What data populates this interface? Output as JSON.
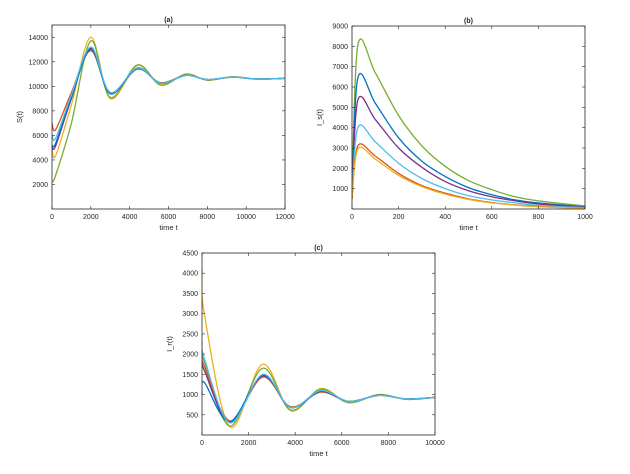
{
  "chart_data": [
    {
      "type": "line",
      "title": "(a)",
      "xlabel": "time t",
      "ylabel": "S(t)",
      "xlim": [
        0,
        12000
      ],
      "ylim": [
        0,
        15000
      ],
      "xticks": [
        0,
        2000,
        4000,
        6000,
        8000,
        10000,
        12000
      ],
      "yticks": [
        2000,
        4000,
        6000,
        8000,
        10000,
        12000,
        14000
      ],
      "x": [
        0,
        200,
        1000,
        2000,
        3000,
        4400,
        5600,
        6900,
        8000,
        9300,
        10500,
        12000
      ],
      "series": [
        {
          "name": "orange",
          "color": "#D95319",
          "values": [
            7000,
            6500,
            9500,
            12900,
            9500,
            11400,
            10300,
            10900,
            10550,
            10750,
            10600,
            10650
          ]
        },
        {
          "name": "yellow",
          "color": "#EDB120",
          "values": [
            4800,
            4400,
            8500,
            14000,
            9000,
            11700,
            10150,
            11000,
            10500,
            10780,
            10600,
            10650
          ]
        },
        {
          "name": "green",
          "color": "#77AC30",
          "values": [
            2200,
            2800,
            7000,
            13700,
            9100,
            11750,
            10100,
            11000,
            10500,
            10780,
            10600,
            10650
          ]
        },
        {
          "name": "purple",
          "color": "#7E2F8E",
          "values": [
            5000,
            5200,
            9000,
            13100,
            9400,
            11500,
            10250,
            10900,
            10550,
            10750,
            10600,
            10650
          ]
        },
        {
          "name": "blue",
          "color": "#0072BD",
          "values": [
            5200,
            5400,
            9100,
            13000,
            9400,
            11450,
            10250,
            10900,
            10550,
            10750,
            10600,
            10650
          ]
        },
        {
          "name": "light-blue",
          "color": "#4DBEEE",
          "values": [
            6000,
            5800,
            9300,
            13200,
            9500,
            11500,
            10250,
            10900,
            10550,
            10750,
            10600,
            10650
          ]
        }
      ]
    },
    {
      "type": "line",
      "title": "(b)",
      "xlabel": "time t",
      "ylabel": "I_s(t)",
      "xlim": [
        0,
        1000
      ],
      "ylim": [
        0,
        9000
      ],
      "xticks": [
        0,
        200,
        400,
        600,
        800,
        1000
      ],
      "yticks": [
        1000,
        2000,
        3000,
        4000,
        5000,
        6000,
        7000,
        8000,
        9000
      ],
      "x": [
        0,
        25,
        100,
        200,
        300,
        400,
        500,
        600,
        700,
        800,
        1000
      ],
      "series": [
        {
          "name": "green",
          "color": "#77AC30",
          "values": [
            500,
            8050,
            6700,
            4600,
            3100,
            2100,
            1400,
            950,
            600,
            400,
            150
          ]
        },
        {
          "name": "blue",
          "color": "#0072BD",
          "values": [
            500,
            6450,
            5200,
            3500,
            2350,
            1600,
            1050,
            700,
            450,
            300,
            100
          ]
        },
        {
          "name": "purple",
          "color": "#7E2F8E",
          "values": [
            500,
            5350,
            4400,
            3000,
            2050,
            1350,
            900,
            600,
            400,
            250,
            80
          ]
        },
        {
          "name": "light-blue",
          "color": "#4DBEEE",
          "values": [
            500,
            4000,
            3300,
            2250,
            1500,
            1000,
            650,
            450,
            300,
            180,
            60
          ]
        },
        {
          "name": "orange",
          "color": "#D95319",
          "values": [
            500,
            3100,
            2600,
            1750,
            1150,
            780,
            500,
            320,
            200,
            120,
            40
          ]
        },
        {
          "name": "yellow",
          "color": "#EDB120",
          "values": [
            500,
            2950,
            2450,
            1650,
            1100,
            730,
            470,
            300,
            190,
            110,
            30
          ]
        }
      ]
    },
    {
      "type": "line",
      "title": "(c)",
      "xlabel": "time t",
      "ylabel": "I_r(t)",
      "xlim": [
        0,
        10000
      ],
      "ylim": [
        0,
        4500
      ],
      "xticks": [
        0,
        2000,
        4000,
        6000,
        8000,
        10000
      ],
      "yticks": [
        500,
        1000,
        1500,
        2000,
        2500,
        3000,
        3500,
        4000,
        4500
      ],
      "x": [
        0,
        100,
        1200,
        2600,
        3800,
        5100,
        6300,
        7600,
        8800,
        10000
      ],
      "series": [
        {
          "name": "yellow",
          "color": "#EDB120",
          "values": [
            4100,
            3000,
            200,
            1750,
            600,
            1150,
            800,
            1000,
            880,
            930
          ]
        },
        {
          "name": "green",
          "color": "#77AC30",
          "values": [
            2000,
            1800,
            220,
            1650,
            620,
            1130,
            800,
            1000,
            880,
            930
          ]
        },
        {
          "name": "orange",
          "color": "#D95319",
          "values": [
            1900,
            1700,
            350,
            1430,
            700,
            1060,
            830,
            980,
            890,
            930
          ]
        },
        {
          "name": "purple",
          "color": "#7E2F8E",
          "values": [
            1800,
            1600,
            320,
            1460,
            680,
            1080,
            830,
            980,
            890,
            930
          ]
        },
        {
          "name": "blue",
          "color": "#0072BD",
          "values": [
            1000,
            1300,
            330,
            1480,
            680,
            1080,
            830,
            980,
            890,
            930
          ]
        },
        {
          "name": "light-blue",
          "color": "#4DBEEE",
          "values": [
            2300,
            1900,
            300,
            1500,
            680,
            1100,
            830,
            980,
            890,
            930
          ]
        }
      ]
    }
  ]
}
